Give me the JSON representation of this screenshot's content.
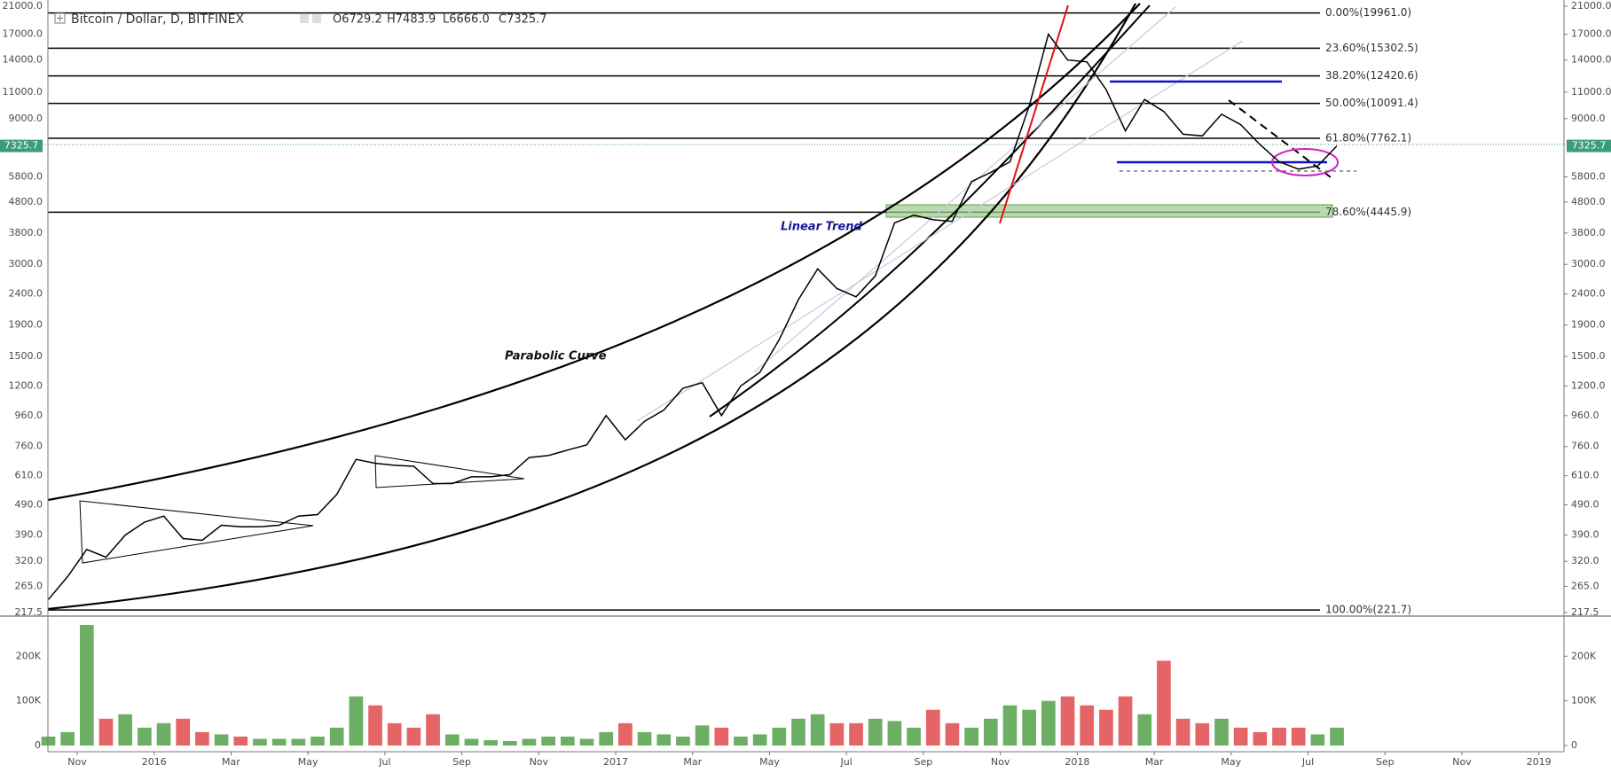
{
  "chart_data": {
    "type": "line",
    "title": "Bitcoin / Dollar, D, BITFINEX",
    "ohlc": [
      "O6729.2",
      "H7483.9",
      "L6666.0",
      "C7325.7"
    ],
    "log_scale": true,
    "color": "#000000",
    "last_price": 7325.7,
    "last_price_color": "#3b9c7d",
    "categories": [
      null,
      null,
      "Nov",
      null,
      null,
      null,
      "2016",
      null,
      null,
      null,
      "Mar",
      null,
      null,
      null,
      "May",
      null,
      null,
      null,
      "Jul",
      null,
      null,
      null,
      "Sep",
      null,
      null,
      null,
      "Nov",
      null,
      null,
      null,
      "2017",
      null,
      null,
      null,
      "Mar",
      null,
      null,
      null,
      "May",
      null,
      null,
      null,
      "Jul",
      null,
      null,
      null,
      "Sep",
      null,
      null,
      null,
      "Nov",
      null,
      null,
      null,
      "2018",
      null,
      null,
      null,
      "Mar",
      null,
      null,
      null,
      "May",
      null,
      null,
      null,
      "Jul",
      null,
      null,
      null,
      "Sep",
      null,
      null,
      null,
      "Nov",
      null,
      null,
      null,
      "2019",
      null,
      null,
      null
    ],
    "values": [
      240,
      285,
      350,
      330,
      390,
      430,
      450,
      380,
      375,
      420,
      415,
      415,
      420,
      450,
      455,
      530,
      690,
      670,
      660,
      655,
      575,
      575,
      605,
      605,
      615,
      700,
      710,
      740,
      770,
      960,
      800,
      920,
      1000,
      1180,
      1230,
      960,
      1200,
      1330,
      1700,
      2300,
      2900,
      2500,
      2350,
      2750,
      4100,
      4350,
      4200,
      4150,
      5600,
      6000,
      6500,
      9900,
      17000,
      14000,
      13800,
      11200,
      8200,
      10400,
      9500,
      8000,
      7900,
      9300,
      8600,
      7400,
      6500,
      6150,
      6300,
      7325.7,
      null,
      null,
      null,
      null,
      null,
      null,
      null,
      null,
      null,
      null,
      null,
      null,
      null,
      null
    ],
    "ylim": [
      217.5,
      21000
    ],
    "yticks": [
      217.5,
      {
        "value": 265,
        "label": "265.0"
      },
      {
        "value": 320,
        "label": "320.0"
      },
      {
        "value": 390,
        "label": "390.0"
      },
      {
        "value": 490,
        "label": "490.0"
      },
      {
        "value": 610,
        "label": "610.0"
      },
      {
        "value": 760,
        "label": "760.0"
      },
      {
        "value": 960,
        "label": "960.0"
      },
      {
        "value": 1200,
        "label": "1200.0"
      },
      {
        "value": 1500,
        "label": "1500.0"
      },
      {
        "value": 1900,
        "label": "1900.0"
      },
      {
        "value": 2400,
        "label": "2400.0"
      },
      {
        "value": 3000,
        "label": "3000.0"
      },
      {
        "value": 3800,
        "label": "3800.0"
      },
      {
        "value": 4800,
        "label": "4800.0"
      },
      {
        "value": 5800,
        "label": "5800.0"
      },
      {
        "value": 9000,
        "label": "9000.0"
      },
      {
        "value": 11000,
        "label": "11000.0"
      },
      {
        "value": 14000,
        "label": "14000.0"
      },
      {
        "value": 17000,
        "label": "17000.0"
      },
      {
        "value": 21000,
        "label": "21000.0"
      }
    ],
    "fib_levels": [
      {
        "value": 19961.0,
        "label": "0.00%(19961.0)"
      },
      {
        "value": 15302.5,
        "label": "23.60%(15302.5)"
      },
      {
        "value": 12420.6,
        "label": "38.20%(12420.6)"
      },
      {
        "value": 10091.4,
        "label": "50.00%(10091.4)"
      },
      {
        "value": 7762.1,
        "label": "61.80%(7762.1)"
      },
      {
        "value": 4445.9,
        "label": "78.60%(4445.9)"
      },
      {
        "value": 221.7,
        "label": "100.00%(221.7)"
      }
    ],
    "annotations": [
      "Parabolic Curve",
      "Linear Trend"
    ],
    "volume": {
      "up_color": "#53a04a",
      "down_color": "#e0494a",
      "values": [
        20000,
        30000,
        270000,
        60000,
        70000,
        40000,
        50000,
        60000,
        30000,
        25000,
        20000,
        15000,
        15000,
        15000,
        20000,
        40000,
        110000,
        90000,
        50000,
        40000,
        70000,
        25000,
        15000,
        12000,
        10000,
        15000,
        20000,
        20000,
        15000,
        30000,
        50000,
        30000,
        25000,
        20000,
        45000,
        40000,
        20000,
        25000,
        40000,
        60000,
        70000,
        50000,
        50000,
        60000,
        55000,
        40000,
        80000,
        50000,
        40000,
        60000,
        90000,
        80000,
        100000,
        110000,
        90000,
        80000,
        110000,
        70000,
        190000,
        60000,
        50000,
        60000,
        40000,
        30000,
        40000,
        40000,
        25000,
        40000,
        null,
        null,
        null,
        null,
        null,
        null,
        null,
        null,
        null,
        null,
        null,
        null,
        null,
        null
      ],
      "ylim": [
        0,
        280000
      ],
      "yticks": [
        0,
        {
          "value": 100000,
          "label": "100K"
        },
        {
          "value": 200000,
          "label": "200K"
        }
      ]
    }
  }
}
